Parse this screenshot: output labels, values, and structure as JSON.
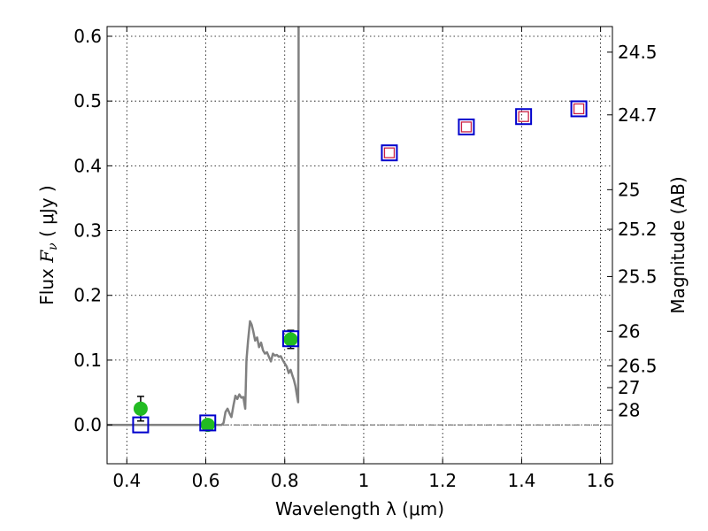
{
  "chart_data": {
    "type": "scatter",
    "title": "",
    "xlabel": "Wavelength  λ (μm)",
    "ylabel": "Flux  F_ν  ( μJy )",
    "ylabel_right": "Magnitude (AB)",
    "xlim": [
      0.35,
      1.63
    ],
    "ylim": [
      -0.06,
      0.615
    ],
    "grid": true,
    "x_ticks": [
      {
        "value": 0.4,
        "label": "0.4"
      },
      {
        "value": 0.6,
        "label": "0.6"
      },
      {
        "value": 0.8,
        "label": "0.8"
      },
      {
        "value": 1.0,
        "label": "1"
      },
      {
        "value": 1.2,
        "label": "1.2"
      },
      {
        "value": 1.4,
        "label": "1.4"
      },
      {
        "value": 1.6,
        "label": "1.6"
      }
    ],
    "y_ticks": [
      {
        "value": 0.0,
        "label": "0.0"
      },
      {
        "value": 0.1,
        "label": "0.1"
      },
      {
        "value": 0.2,
        "label": "0.2"
      },
      {
        "value": 0.3,
        "label": "0.3"
      },
      {
        "value": 0.4,
        "label": "0.4"
      },
      {
        "value": 0.5,
        "label": "0.5"
      },
      {
        "value": 0.6,
        "label": "0.6"
      }
    ],
    "right_ticks": [
      {
        "value": 24.5,
        "label": "24.5"
      },
      {
        "value": 24.7,
        "label": "24.7"
      },
      {
        "value": 25.0,
        "label": "25"
      },
      {
        "value": 25.2,
        "label": "25.2"
      },
      {
        "value": 25.5,
        "label": "25.5"
      },
      {
        "value": 26.0,
        "label": "26"
      },
      {
        "value": 26.5,
        "label": "26.5"
      },
      {
        "value": 27.0,
        "label": "27"
      },
      {
        "value": 28.0,
        "label": "28"
      }
    ],
    "colors": {
      "observed": "#22bb22",
      "model_box": "#0000cc",
      "model_inner": "#cc2244",
      "spectrum": "#808080",
      "zero_line": "#555555"
    },
    "series": [
      {
        "name": "observed",
        "kind": "points_with_errors",
        "points": [
          {
            "x": 0.435,
            "y": 0.025,
            "err": 0.019
          },
          {
            "x": 0.605,
            "y": 0.0,
            "err": 0.007
          },
          {
            "x": 0.815,
            "y": 0.132,
            "err": 0.014
          }
        ]
      },
      {
        "name": "model_bands",
        "kind": "open_squares",
        "points": [
          {
            "x": 0.435,
            "y": 0.0
          },
          {
            "x": 0.605,
            "y": 0.003
          },
          {
            "x": 0.815,
            "y": 0.133
          },
          {
            "x": 1.065,
            "y": 0.42
          },
          {
            "x": 1.26,
            "y": 0.46
          },
          {
            "x": 1.405,
            "y": 0.476
          },
          {
            "x": 1.545,
            "y": 0.488
          }
        ]
      },
      {
        "name": "predicted_nir",
        "kind": "small_squares",
        "points": [
          {
            "x": 1.065,
            "y": 0.42
          },
          {
            "x": 1.26,
            "y": 0.46
          },
          {
            "x": 1.405,
            "y": 0.476
          },
          {
            "x": 1.545,
            "y": 0.488
          }
        ]
      },
      {
        "name": "spectrum",
        "kind": "line",
        "x": [
          0.35,
          0.64,
          0.645,
          0.65,
          0.655,
          0.66,
          0.665,
          0.67,
          0.675,
          0.68,
          0.685,
          0.69,
          0.695,
          0.7,
          0.703,
          0.707,
          0.712,
          0.716,
          0.72,
          0.725,
          0.73,
          0.735,
          0.74,
          0.745,
          0.75,
          0.755,
          0.76,
          0.765,
          0.77,
          0.775,
          0.78,
          0.785,
          0.79,
          0.795,
          0.8,
          0.805,
          0.81,
          0.815,
          0.82,
          0.823,
          0.827,
          0.831,
          0.834,
          0.835,
          0.835
        ],
        "y": [
          0.0,
          0.0,
          0.003,
          0.02,
          0.025,
          0.018,
          0.012,
          0.03,
          0.045,
          0.04,
          0.047,
          0.042,
          0.043,
          0.025,
          0.1,
          0.13,
          0.16,
          0.155,
          0.145,
          0.13,
          0.135,
          0.12,
          0.127,
          0.115,
          0.11,
          0.112,
          0.105,
          0.098,
          0.11,
          0.107,
          0.108,
          0.105,
          0.106,
          0.1,
          0.095,
          0.09,
          0.08,
          0.085,
          0.075,
          0.07,
          0.06,
          0.045,
          0.035,
          0.2,
          0.615
        ]
      }
    ]
  }
}
